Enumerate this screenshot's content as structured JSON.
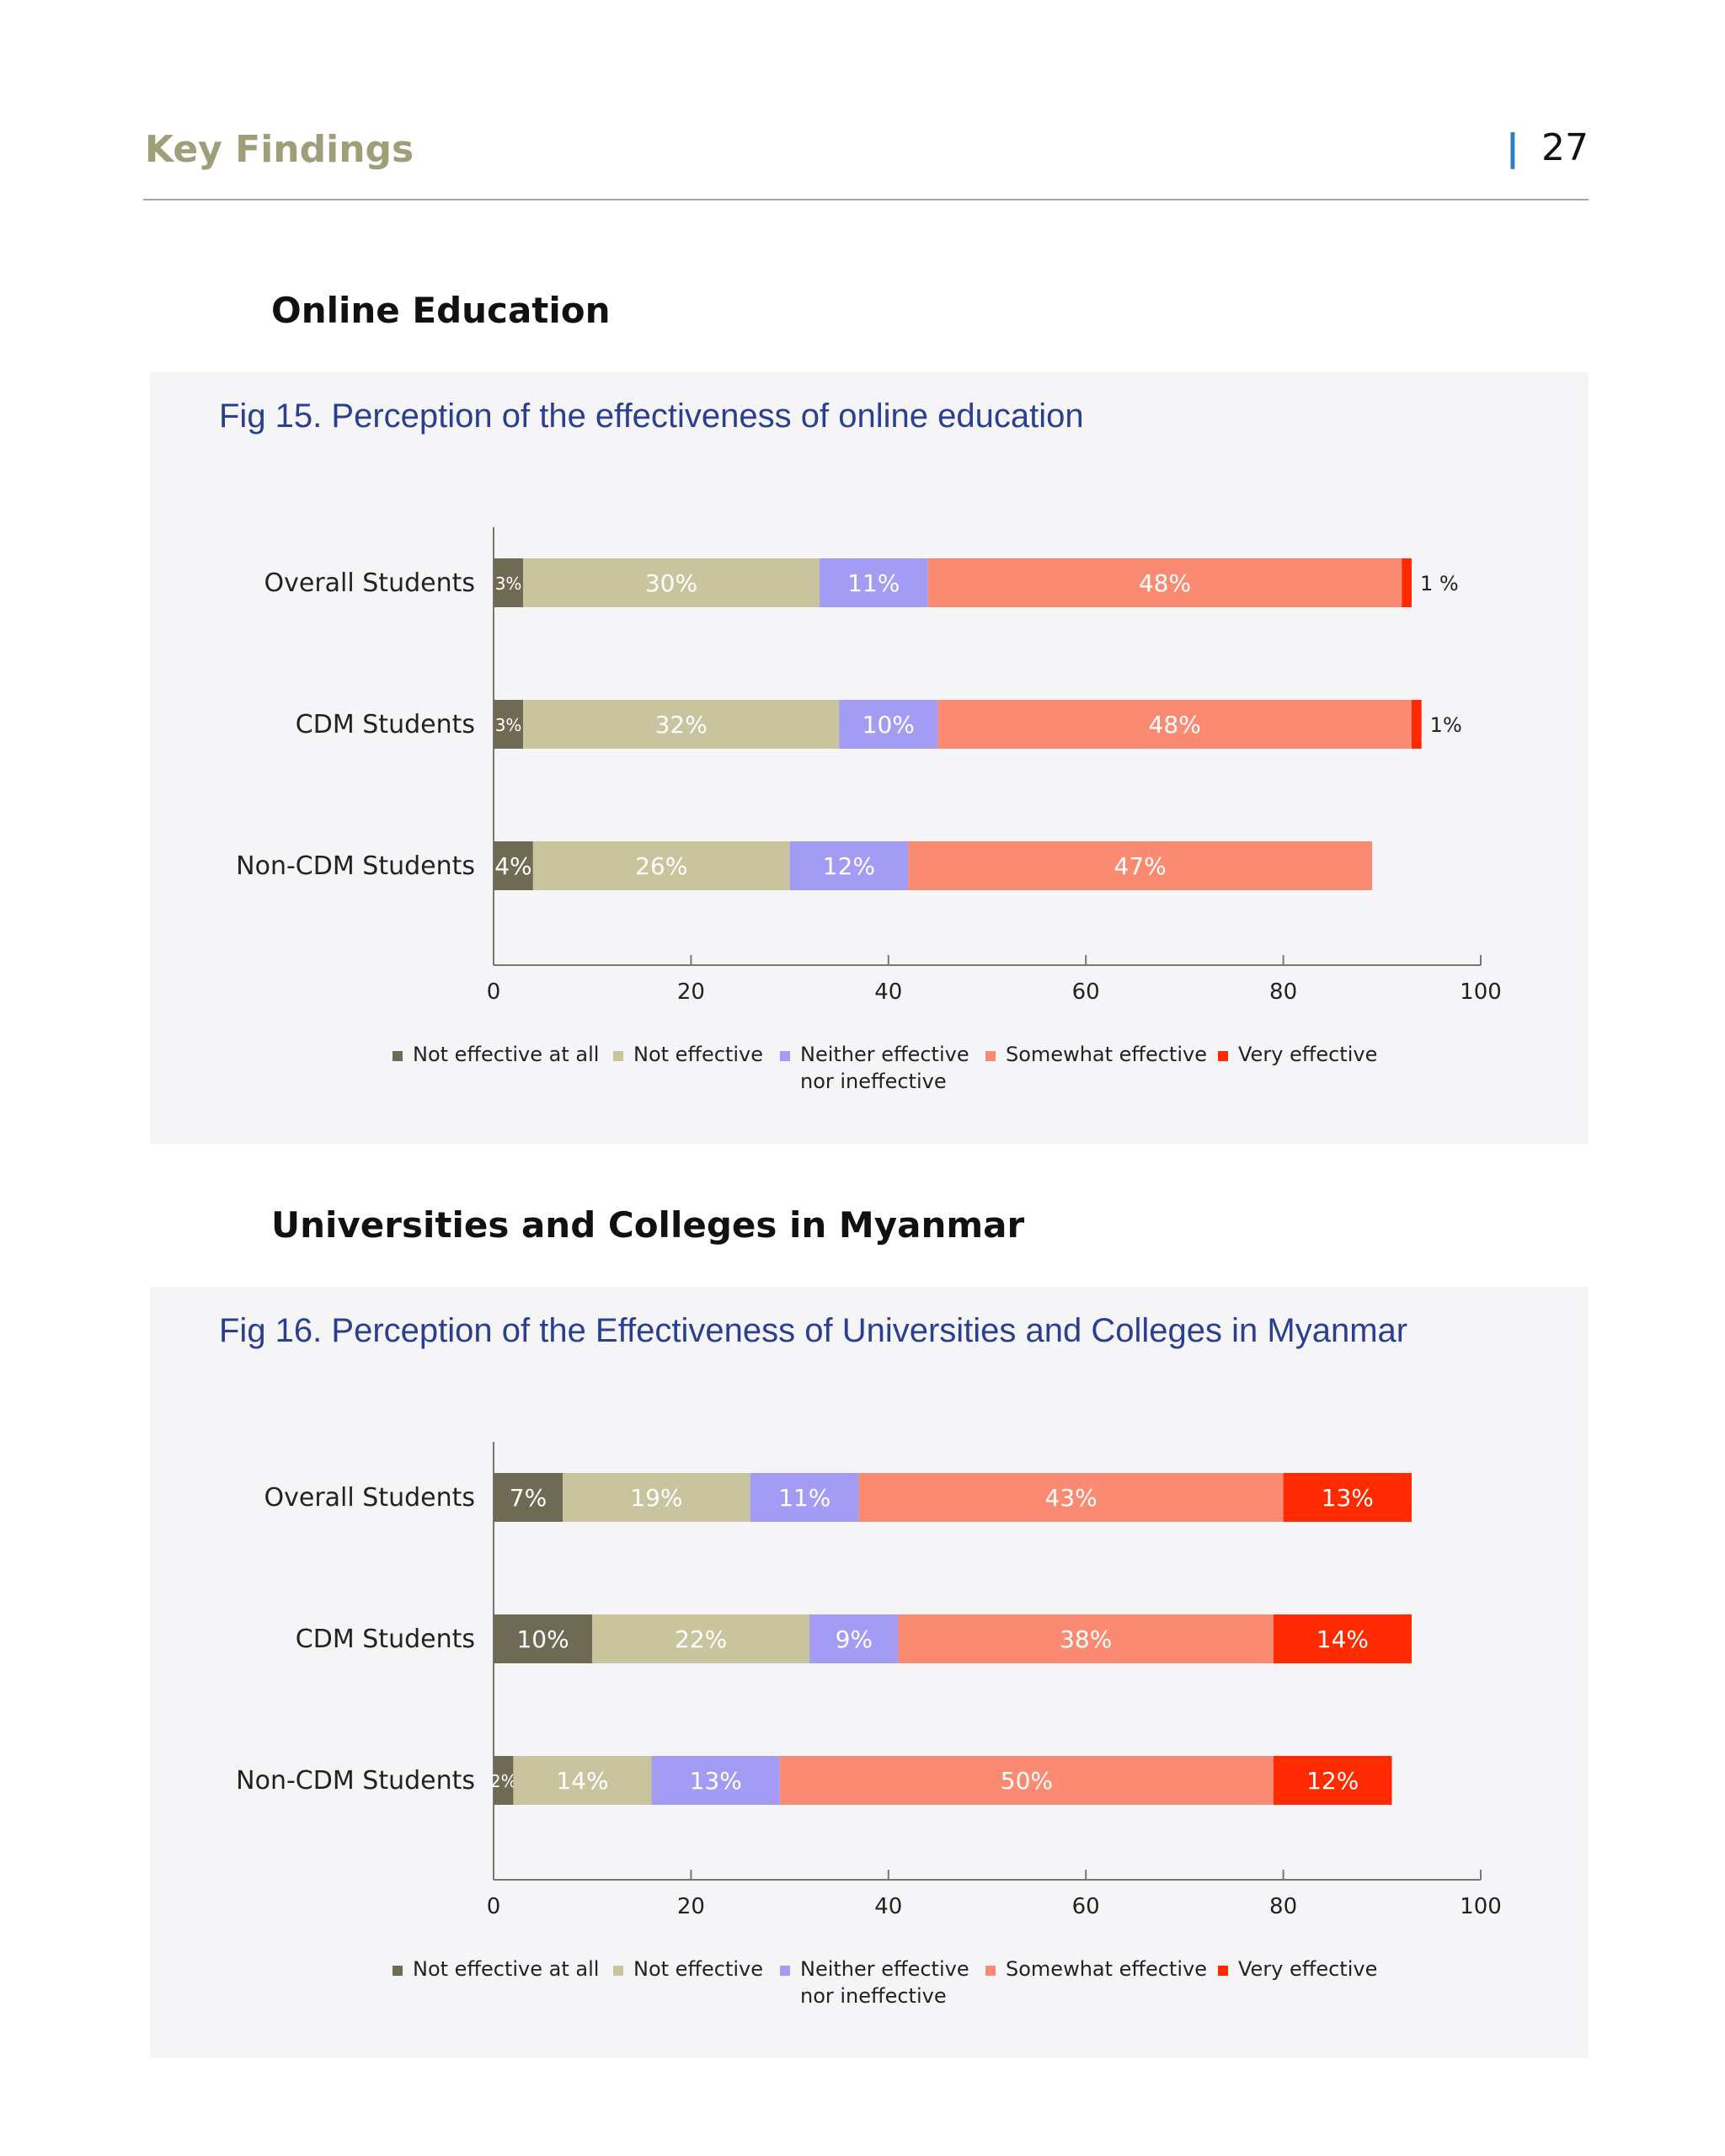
{
  "header": {
    "title": "Key Findings",
    "page_number": "27"
  },
  "sections": [
    {
      "title": "Online Education"
    },
    {
      "title": "Universities and Colleges in Myanmar"
    }
  ],
  "legend": {
    "items": [
      {
        "lines": [
          "Not effective at all"
        ],
        "color": "#6e6a54"
      },
      {
        "lines": [
          "Not effective"
        ],
        "color": "#c8c49e"
      },
      {
        "lines": [
          "Neither effective",
          "nor ineffective"
        ],
        "color": "#a49bf5"
      },
      {
        "lines": [
          "Somewhat effective"
        ],
        "color": "#fb8a72"
      },
      {
        "lines": [
          "Very effective"
        ],
        "color": "#ff2a00"
      }
    ]
  },
  "chart_data": [
    {
      "type": "bar",
      "orientation": "horizontal",
      "stacked": true,
      "title": "Fig 15. Perception of the effectiveness of online education",
      "categories": [
        "Overall Students",
        "CDM Students",
        "Non-CDM Students"
      ],
      "series": [
        {
          "name": "Not effective at all",
          "values": [
            3,
            3,
            4
          ],
          "labels": [
            "3%",
            "3%",
            "4%"
          ]
        },
        {
          "name": "Not effective",
          "values": [
            30,
            32,
            26
          ],
          "labels": [
            "30%",
            "32%",
            "26%"
          ]
        },
        {
          "name": "Neither effective nor ineffective",
          "values": [
            11,
            10,
            12
          ],
          "labels": [
            "11%",
            "10%",
            "12%"
          ]
        },
        {
          "name": "Somewhat effective",
          "values": [
            48,
            48,
            47
          ],
          "labels": [
            "48%",
            "48%",
            "47%"
          ]
        },
        {
          "name": "Very effective",
          "values": [
            1,
            1,
            0
          ],
          "labels": [
            "1 %",
            "1%",
            ""
          ]
        }
      ],
      "xlim": [
        0,
        100
      ],
      "xticks": [
        "0",
        "20",
        "40",
        "60",
        "80",
        "100"
      ],
      "legend_position": "bottom"
    },
    {
      "type": "bar",
      "orientation": "horizontal",
      "stacked": true,
      "title": "Fig 16. Perception of the Effectiveness of Universities and Colleges in Myanmar",
      "categories": [
        "Overall Students",
        "CDM Students",
        "Non-CDM Students"
      ],
      "series": [
        {
          "name": "Not effective at all",
          "values": [
            7,
            10,
            2
          ],
          "labels": [
            "7%",
            "10%",
            "2%"
          ]
        },
        {
          "name": "Not effective",
          "values": [
            19,
            22,
            14
          ],
          "labels": [
            "19%",
            "22%",
            "14%"
          ]
        },
        {
          "name": "Neither effective nor ineffective",
          "values": [
            11,
            9,
            13
          ],
          "labels": [
            "11%",
            "9%",
            "13%"
          ]
        },
        {
          "name": "Somewhat effective",
          "values": [
            43,
            38,
            50
          ],
          "labels": [
            "43%",
            "38%",
            "50%"
          ]
        },
        {
          "name": "Very effective",
          "values": [
            13,
            14,
            12
          ],
          "labels": [
            "13%",
            "14%",
            "12%"
          ]
        }
      ],
      "xlim": [
        0,
        100
      ],
      "xticks": [
        "0",
        "20",
        "40",
        "60",
        "80",
        "100"
      ],
      "legend_position": "bottom"
    }
  ]
}
